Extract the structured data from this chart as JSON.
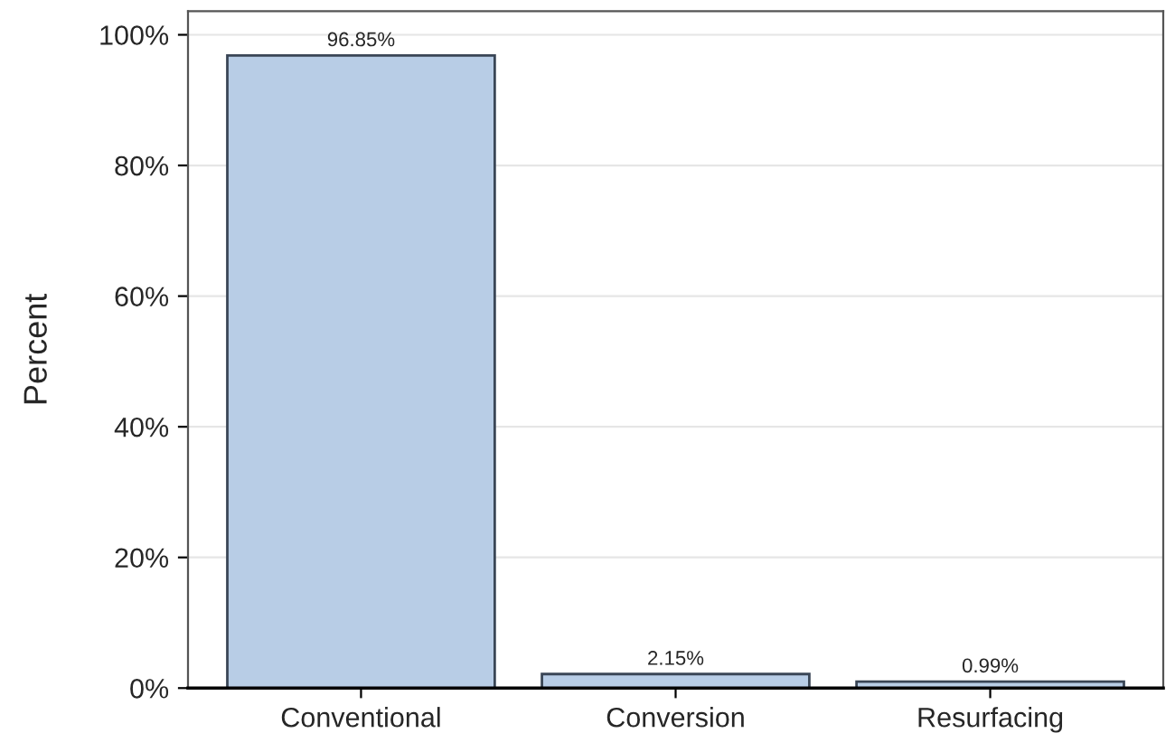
{
  "chart_data": {
    "type": "bar",
    "ylabel": "Percent",
    "categories": [
      "Conventional",
      "Conversion",
      "Resurfacing"
    ],
    "values": [
      96.85,
      2.15,
      0.99
    ],
    "value_labels": [
      "96.85%",
      "2.15%",
      "0.99%"
    ],
    "color": "#b8cde6",
    "ylim": [
      0,
      103.6
    ],
    "yticks": [
      {
        "value": 0,
        "label": "0%"
      },
      {
        "value": 20,
        "label": "20%"
      },
      {
        "value": 40,
        "label": "40%"
      },
      {
        "value": 60,
        "label": "60%"
      },
      {
        "value": 80,
        "label": "80%"
      },
      {
        "value": 100,
        "label": "100%"
      }
    ],
    "grid": "y"
  }
}
